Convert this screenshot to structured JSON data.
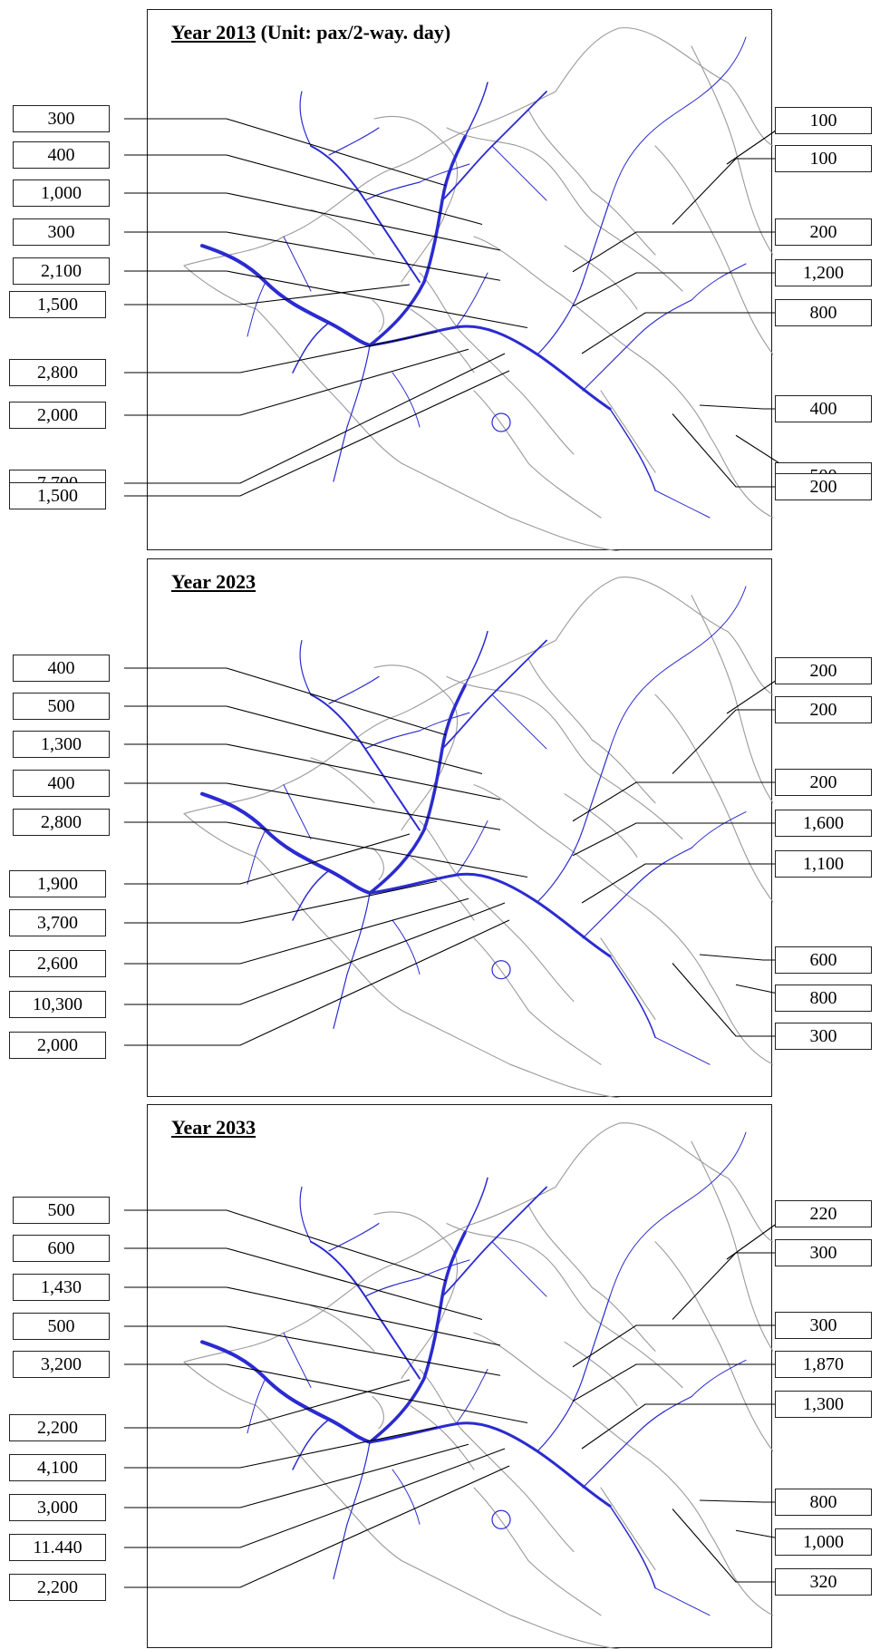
{
  "panels": [
    {
      "year": "Year 2013",
      "unit": " (Unit: pax/2-way. day)",
      "left_labels": [
        "300",
        "400",
        "1,000",
        "300",
        "2,100",
        "1,500",
        "2,800",
        "2,000",
        "7,700",
        "1,500"
      ],
      "right_labels": [
        "100",
        "100",
        "200",
        "1,200",
        "800",
        "400",
        "500",
        "200"
      ]
    },
    {
      "year": "Year 2023",
      "unit": "",
      "left_labels": [
        "400",
        "500",
        "1,300",
        "400",
        "2,800",
        "1,900",
        "3,700",
        "2,600",
        "10,300",
        "2,000"
      ],
      "right_labels": [
        "200",
        "200",
        "200",
        "1,600",
        "1,100",
        "600",
        "800",
        "300"
      ]
    },
    {
      "year": "Year 2033",
      "unit": "",
      "left_labels": [
        "500",
        "600",
        "1,430",
        "500",
        "3,200",
        "2,200",
        "4,100",
        "3,000",
        "11.440",
        "2,200"
      ],
      "right_labels": [
        "220",
        "300",
        "300",
        "1,870",
        "1,300",
        "800",
        "1,000",
        "320"
      ]
    }
  ],
  "colors": {
    "network": "#2b2bd0",
    "boundary": "#9a9a9a",
    "frame": "#1a1a1a",
    "leader": "#000000"
  }
}
